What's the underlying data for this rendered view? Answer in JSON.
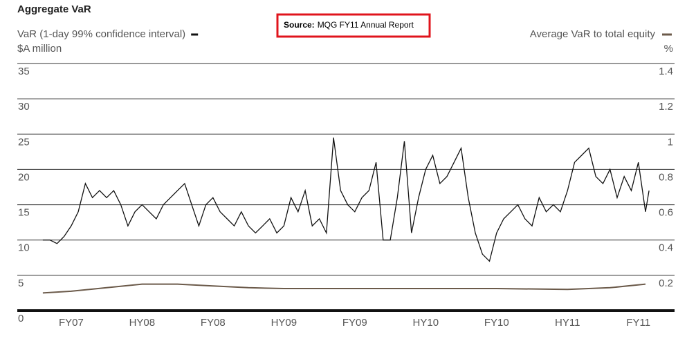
{
  "chart_data": {
    "type": "line",
    "title": "Aggregate VaR",
    "ylabel": "$A million",
    "y2label": "%",
    "annotation": {
      "label": "Source:",
      "text": "MQG FY11 Annual Report"
    },
    "xlim": [
      -0.76,
      8.51
    ],
    "xticks": [
      {
        "value": 0,
        "label": "FY07"
      },
      {
        "value": 1,
        "label": "HY08"
      },
      {
        "value": 2,
        "label": "FY08"
      },
      {
        "value": 3,
        "label": "HY09"
      },
      {
        "value": 4,
        "label": "FY09"
      },
      {
        "value": 5,
        "label": "HY10"
      },
      {
        "value": 6,
        "label": "FY10"
      },
      {
        "value": 7,
        "label": "HY11"
      },
      {
        "value": 8,
        "label": "FY11"
      }
    ],
    "ylim": [
      0,
      35
    ],
    "yticks": [
      0,
      5,
      10,
      15,
      20,
      25,
      30,
      35
    ],
    "y2lim": [
      0,
      1.4
    ],
    "y2ticks": [
      0.2,
      0.4,
      0.6,
      0.8,
      1.0,
      1.2,
      1.4
    ],
    "grid": true,
    "series": [
      {
        "name": "VaR (1-day 99% confidence interval)",
        "color": "#111111",
        "x": [
          -0.4,
          -0.3,
          -0.2,
          -0.1,
          0,
          0.1,
          0.2,
          0.3,
          0.4,
          0.5,
          0.6,
          0.7,
          0.8,
          0.9,
          1.0,
          1.1,
          1.2,
          1.3,
          1.4,
          1.5,
          1.6,
          1.7,
          1.8,
          1.9,
          2.0,
          2.1,
          2.2,
          2.3,
          2.4,
          2.5,
          2.6,
          2.7,
          2.8,
          2.9,
          3.0,
          3.1,
          3.2,
          3.3,
          3.4,
          3.5,
          3.6,
          3.7,
          3.8,
          3.9,
          4.0,
          4.1,
          4.2,
          4.3,
          4.4,
          4.5,
          4.6,
          4.7,
          4.8,
          4.9,
          5.0,
          5.1,
          5.2,
          5.3,
          5.4,
          5.5,
          5.6,
          5.7,
          5.8,
          5.9,
          6.0,
          6.1,
          6.2,
          6.3,
          6.4,
          6.5,
          6.6,
          6.7,
          6.8,
          6.9,
          7.0,
          7.1,
          7.2,
          7.3,
          7.4,
          7.5,
          7.6,
          7.7,
          7.8,
          7.9,
          8.0,
          8.1,
          8.15
        ],
        "values": [
          10,
          10,
          9.5,
          10.5,
          12,
          14,
          18,
          16,
          17,
          16,
          17,
          15,
          12,
          14,
          15,
          14,
          13,
          15,
          16,
          17,
          18,
          15,
          12,
          15,
          16,
          14,
          13,
          12,
          14,
          12,
          11,
          12,
          13,
          11,
          12,
          16,
          14,
          17,
          12,
          13,
          11,
          24.5,
          17,
          15,
          14,
          16,
          17,
          21,
          10,
          10,
          16,
          24,
          11,
          16,
          20,
          22,
          18,
          19,
          21,
          23,
          16,
          11,
          8,
          7,
          11,
          13,
          14,
          15,
          13,
          12,
          16,
          14,
          15,
          14,
          17,
          21,
          22,
          23,
          19,
          18,
          20,
          16,
          19,
          17,
          21,
          14,
          17
        ]
      },
      {
        "name": "Average VaR to total equity",
        "color": "#6b5a4a",
        "axis": "y2",
        "x": [
          -0.4,
          0,
          0.5,
          1.0,
          1.5,
          2.0,
          2.5,
          3.0,
          6.0,
          7.0,
          7.6,
          8.1
        ],
        "values": [
          0.1,
          0.11,
          0.13,
          0.15,
          0.15,
          0.14,
          0.13,
          0.125,
          0.125,
          0.12,
          0.13,
          0.15
        ]
      }
    ]
  }
}
